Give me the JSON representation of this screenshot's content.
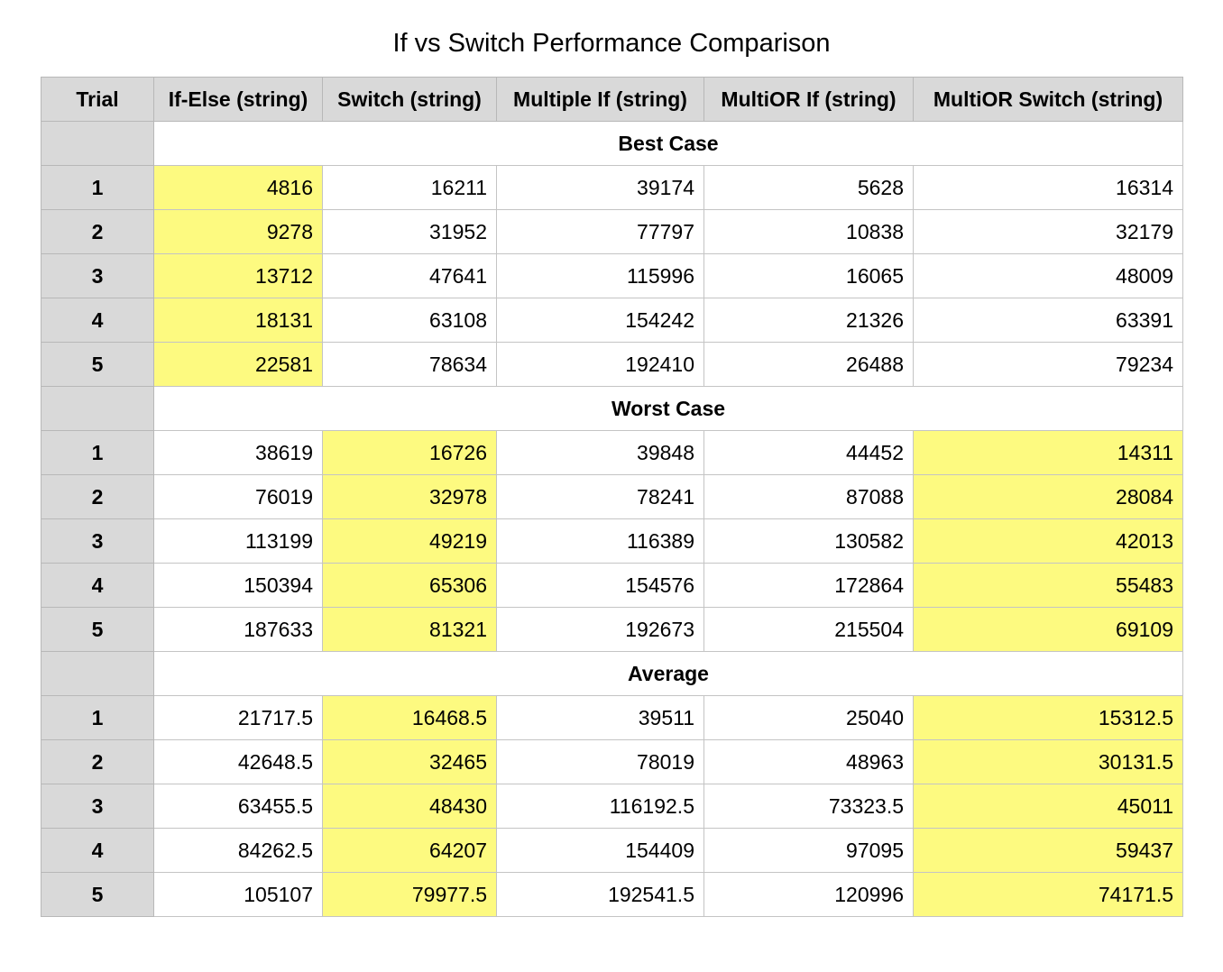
{
  "title": "If vs Switch Performance Comparison",
  "colors": {
    "header_bg": "#d9d9d9",
    "highlight": "#fdfa80",
    "grid": "#c4c4c4"
  },
  "chart_data": {
    "type": "table",
    "title": "If vs Switch Performance Comparison",
    "columns": [
      "Trial",
      "If-Else (string)",
      "Switch (string)",
      "Multiple If (string)",
      "MultiOR If (string)",
      "MultiOR Switch (string)"
    ],
    "sections": [
      {
        "name": "Best Case",
        "highlight_columns": [
          0
        ],
        "rows": [
          {
            "trial": "1",
            "values": [
              "4816",
              "16211",
              "39174",
              "5628",
              "16314"
            ]
          },
          {
            "trial": "2",
            "values": [
              "9278",
              "31952",
              "77797",
              "10838",
              "32179"
            ]
          },
          {
            "trial": "3",
            "values": [
              "13712",
              "47641",
              "115996",
              "16065",
              "48009"
            ]
          },
          {
            "trial": "4",
            "values": [
              "18131",
              "63108",
              "154242",
              "21326",
              "63391"
            ]
          },
          {
            "trial": "5",
            "values": [
              "22581",
              "78634",
              "192410",
              "26488",
              "79234"
            ]
          }
        ]
      },
      {
        "name": "Worst Case",
        "highlight_columns": [
          1,
          4
        ],
        "rows": [
          {
            "trial": "1",
            "values": [
              "38619",
              "16726",
              "39848",
              "44452",
              "14311"
            ]
          },
          {
            "trial": "2",
            "values": [
              "76019",
              "32978",
              "78241",
              "87088",
              "28084"
            ]
          },
          {
            "trial": "3",
            "values": [
              "113199",
              "49219",
              "116389",
              "130582",
              "42013"
            ]
          },
          {
            "trial": "4",
            "values": [
              "150394",
              "65306",
              "154576",
              "172864",
              "55483"
            ]
          },
          {
            "trial": "5",
            "values": [
              "187633",
              "81321",
              "192673",
              "215504",
              "69109"
            ]
          }
        ]
      },
      {
        "name": "Average",
        "highlight_columns": [
          1,
          4
        ],
        "rows": [
          {
            "trial": "1",
            "values": [
              "21717.5",
              "16468.5",
              "39511",
              "25040",
              "15312.5"
            ]
          },
          {
            "trial": "2",
            "values": [
              "42648.5",
              "32465",
              "78019",
              "48963",
              "30131.5"
            ]
          },
          {
            "trial": "3",
            "values": [
              "63455.5",
              "48430",
              "116192.5",
              "73323.5",
              "45011"
            ]
          },
          {
            "trial": "4",
            "values": [
              "84262.5",
              "64207",
              "154409",
              "97095",
              "59437"
            ]
          },
          {
            "trial": "5",
            "values": [
              "105107",
              "79977.5",
              "192541.5",
              "120996",
              "74171.5"
            ]
          }
        ]
      }
    ]
  }
}
